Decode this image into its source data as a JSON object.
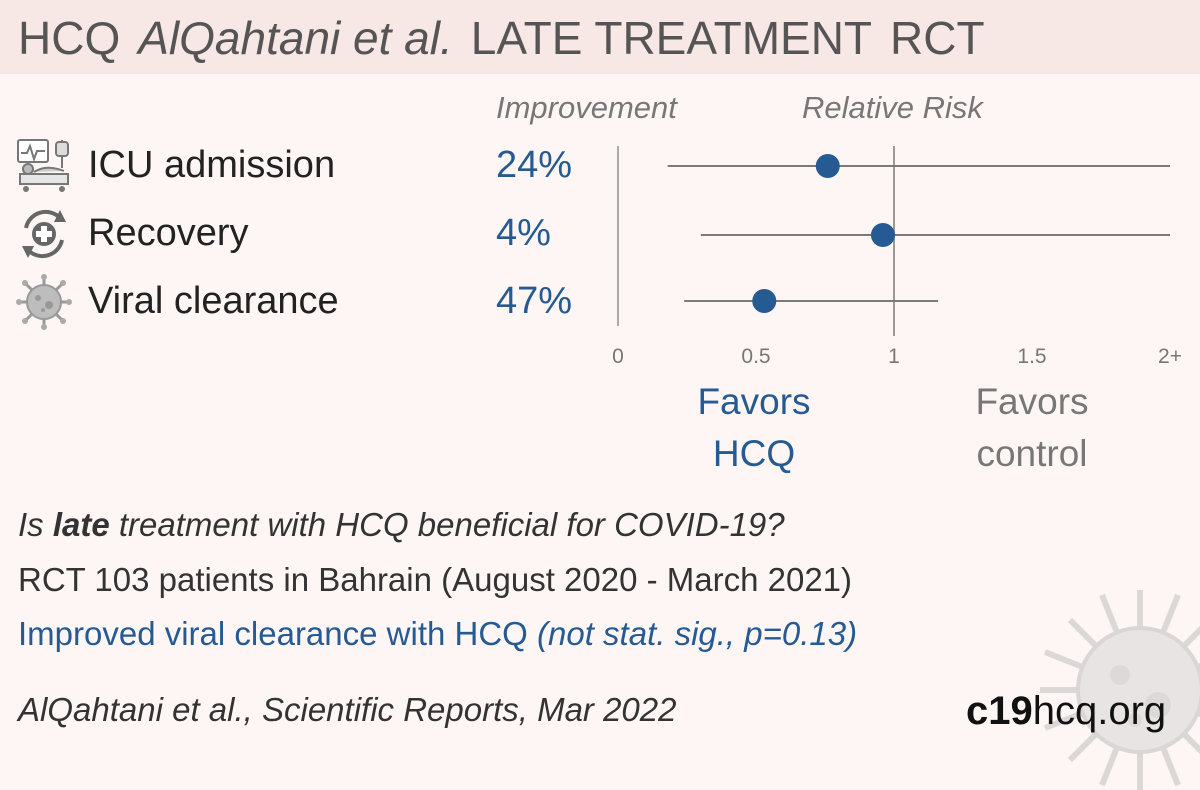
{
  "title": {
    "drug": "HCQ",
    "authors": "AlQahtani et al.",
    "treatment": "LATE TREATMENT",
    "design": "RCT"
  },
  "headers": {
    "improvement": "Improvement",
    "relative_risk": "Relative Risk"
  },
  "rows": [
    {
      "label": "ICU admission",
      "improvement": "24%",
      "icon": "icu-bed-icon"
    },
    {
      "label": "Recovery",
      "improvement": "4%",
      "icon": "recovery-cross-icon"
    },
    {
      "label": "Viral clearance",
      "improvement": "47%",
      "icon": "virus-icon"
    }
  ],
  "chart_data": {
    "type": "forest",
    "xlabel": "Relative Risk",
    "xlim": [
      0,
      2
    ],
    "x_ticks": [
      {
        "value": 0,
        "label": "0"
      },
      {
        "value": 0.5,
        "label": "0.5"
      },
      {
        "value": 1,
        "label": "1"
      },
      {
        "value": 1.5,
        "label": "1.5"
      },
      {
        "value": 2,
        "label": "2+"
      }
    ],
    "reference_line": 1,
    "series": [
      {
        "outcome": "ICU admission",
        "rr": 0.76,
        "ci": [
          0.18,
          2.0
        ]
      },
      {
        "outcome": "Recovery",
        "rr": 0.96,
        "ci": [
          0.3,
          2.0
        ]
      },
      {
        "outcome": "Viral clearance",
        "rr": 0.53,
        "ci": [
          0.24,
          1.16
        ]
      }
    ],
    "point_color": "#255a92",
    "line_color": "#7a7a7a"
  },
  "favors": {
    "hcq_line1": "Favors",
    "hcq_line2": "HCQ",
    "control_line1": "Favors",
    "control_line2": "control"
  },
  "info": {
    "q_pre": "Is ",
    "q_bold": "late",
    "q_post": " treatment with HCQ beneficial for COVID-19?",
    "rct": "RCT 103 patients in Bahrain (August 2020 - March 2021)",
    "result_main": "Improved viral clearance with HCQ ",
    "result_note": "(not stat. sig., p=0.13)"
  },
  "citation": "AlQahtani et al., Scientific Reports, Mar 2022",
  "logo": {
    "bold": "c19",
    "rest": "hcq.org"
  }
}
